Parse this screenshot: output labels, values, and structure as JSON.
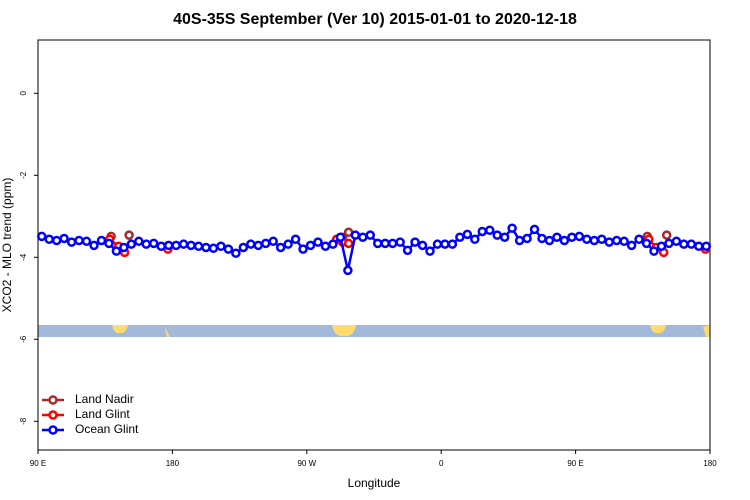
{
  "chart_data": {
    "type": "line",
    "title": "40S-35S September (Ver 10)   2015-01-01 to 2020-12-18",
    "x_label": "Longitude",
    "y_label": "XCO2 - MLO trend (ppm)",
    "xlim": [
      90,
      540
    ],
    "xticks": [
      {
        "value": 90,
        "label": "90 E"
      },
      {
        "value": 180,
        "label": "180"
      },
      {
        "value": 270,
        "label": "90 W"
      },
      {
        "value": 360,
        "label": "0"
      },
      {
        "value": 450,
        "label": "90 E"
      },
      {
        "value": 540,
        "label": "180"
      }
    ],
    "ylim": [
      -8.7,
      1.3
    ],
    "yticks": [
      0,
      -2,
      -4,
      -6,
      -8
    ],
    "legend": "bottom-left",
    "series": [
      {
        "name": "Land Nadir",
        "color": "#a52a2a",
        "x": [
          139,
          null,
          151,
          null,
          294,
          298,
          null,
          498,
          null,
          511
        ],
        "values": [
          -3.49,
          null,
          -3.46,
          null,
          -3.51,
          -3.39,
          null,
          -3.49,
          null,
          -3.46
        ]
      },
      {
        "name": "Land Glint",
        "color": "#ff0000",
        "x": [
          138,
          144,
          148,
          null,
          177,
          null,
          290,
          294,
          298,
          null,
          499,
          504,
          509,
          null,
          537
        ],
        "values": [
          -3.56,
          -3.73,
          -3.88,
          null,
          -3.8,
          null,
          -3.56,
          -3.63,
          -3.66,
          null,
          -3.56,
          -3.76,
          -3.88,
          null,
          -3.8
        ]
      },
      {
        "name": "Ocean Glint",
        "color": "#0000ff",
        "x": [
          92.5,
          97.5,
          102.5,
          107.5,
          112.5,
          117.5,
          122.5,
          127.5,
          132.5,
          137.5,
          142.5,
          147.5,
          152.5,
          157.5,
          162.5,
          167.5,
          172.5,
          177.5,
          182.5,
          187.5,
          192.5,
          197.5,
          202.5,
          207.5,
          212.5,
          217.5,
          222.5,
          227.5,
          232.5,
          237.5,
          242.5,
          247.5,
          252.5,
          257.5,
          262.5,
          267.5,
          272.5,
          277.5,
          282.5,
          287.5,
          292.5,
          297.5,
          302.5,
          307.5,
          312.5,
          317.5,
          322.5,
          327.5,
          332.5,
          337.5,
          342.5,
          347.5,
          352.5,
          357.5,
          362.5,
          367.5,
          372.5,
          377.5,
          382.5,
          387.5,
          392.5,
          397.5,
          402.5,
          407.5,
          412.5,
          417.5,
          422.5,
          427.5,
          432.5,
          437.5,
          442.5,
          447.5,
          452.5,
          457.5,
          462.5,
          467.5,
          472.5,
          477.5,
          482.5,
          487.5,
          492.5,
          497.5,
          502.5,
          507.5,
          512.5,
          517.5,
          522.5,
          527.5,
          532.5,
          537.5
        ],
        "values": [
          -3.49,
          -3.56,
          -3.59,
          -3.54,
          -3.63,
          -3.59,
          -3.61,
          -3.71,
          -3.59,
          -3.66,
          -3.85,
          -3.76,
          -3.68,
          -3.61,
          -3.68,
          -3.66,
          -3.73,
          -3.71,
          -3.71,
          -3.68,
          -3.71,
          -3.73,
          -3.76,
          -3.78,
          -3.73,
          -3.8,
          -3.9,
          -3.76,
          -3.68,
          -3.71,
          -3.66,
          -3.61,
          -3.76,
          -3.68,
          -3.56,
          -3.8,
          -3.71,
          -3.63,
          -3.73,
          -3.68,
          -3.51,
          -4.32,
          -3.46,
          -3.51,
          -3.46,
          -3.66,
          -3.66,
          -3.66,
          -3.63,
          -3.83,
          -3.63,
          -3.71,
          -3.85,
          -3.68,
          -3.68,
          -3.68,
          -3.51,
          -3.44,
          -3.56,
          -3.37,
          -3.34,
          -3.46,
          -3.51,
          -3.29,
          -3.59,
          -3.54,
          -3.32,
          -3.54,
          -3.59,
          -3.51,
          -3.59,
          -3.51,
          -3.49,
          -3.56,
          -3.59,
          -3.56,
          -3.63,
          -3.59,
          -3.61,
          -3.71,
          -3.56,
          -3.66,
          -3.85,
          -3.73,
          -3.66,
          -3.61,
          -3.68,
          -3.68,
          -3.73,
          -3.73
        ]
      }
    ]
  }
}
